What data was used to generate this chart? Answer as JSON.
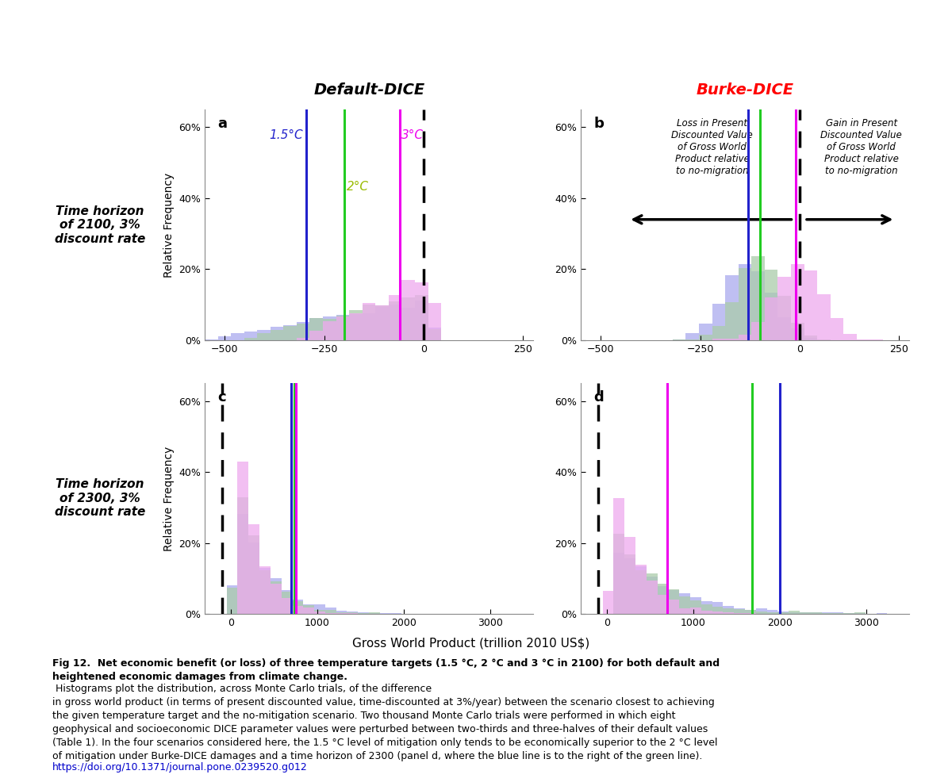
{
  "title_left": "Default-DICE",
  "title_right": "Burke-DICE",
  "row_labels": [
    "Time horizon\nof 2100, 3%\ndiscount rate",
    "Time horizon\nof 2300, 3%\ndiscount rate"
  ],
  "colors": {
    "blue": "#2222CC",
    "green": "#22CC22",
    "magenta": "#EE00EE",
    "blue_hist": "#AAAAEE",
    "green_hist": "#AACCAA",
    "magenta_hist": "#EEAAEE"
  },
  "panel_a": {
    "line_1p5": -295,
    "line_2": -200,
    "line_3": -60,
    "line_zero": 0
  },
  "panel_b": {
    "line_1p5": -130,
    "line_2": -100,
    "line_3": -10,
    "line_zero": 0
  },
  "panel_c": {
    "line_1p5": 700,
    "line_2": 735,
    "line_3": 755,
    "line_zero": 0,
    "dashed_zero": -100
  },
  "panel_d": {
    "line_1p5": 2000,
    "line_2": 1680,
    "line_3": 700,
    "line_zero": 0,
    "dashed_zero": -100
  },
  "xlabel": "Gross World Product (trillion 2010 US$)",
  "ylabel": "Relative Frequency",
  "url": "https://doi.org/10.1371/journal.pone.0239520.g012"
}
